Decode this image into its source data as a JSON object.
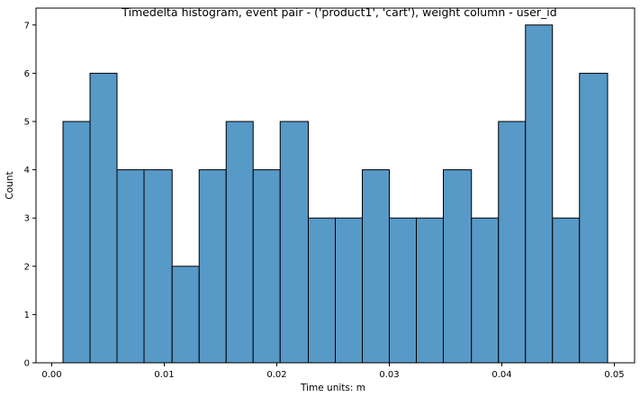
{
  "chart_data": {
    "type": "bar",
    "title": "Timedelta histogram, event pair - ('product1', 'cart'), weight column - user_id",
    "xlabel": "Time units: m",
    "ylabel": "Count",
    "bin_edges": [
      0.001,
      0.0034,
      0.0058,
      0.0082,
      0.0107,
      0.0131,
      0.0155,
      0.0179,
      0.0203,
      0.0228,
      0.0252,
      0.0276,
      0.03,
      0.0324,
      0.0348,
      0.0373,
      0.0397,
      0.0421,
      0.0445,
      0.0469,
      0.0494
    ],
    "values": [
      5,
      6,
      4,
      4,
      2,
      4,
      5,
      4,
      5,
      3,
      3,
      4,
      3,
      3,
      4,
      3,
      5,
      7,
      3,
      6
    ],
    "xlim": [
      -0.0014,
      0.0518
    ],
    "ylim": [
      0,
      7.35
    ],
    "xticks": [
      0.0,
      0.01,
      0.02,
      0.03,
      0.04,
      0.05
    ],
    "xtick_labels": [
      "0.00",
      "0.01",
      "0.02",
      "0.03",
      "0.04",
      "0.05"
    ],
    "yticks": [
      0,
      1,
      2,
      3,
      4,
      5,
      6,
      7
    ],
    "ytick_labels": [
      "0",
      "1",
      "2",
      "3",
      "4",
      "5",
      "6",
      "7"
    ],
    "grid": false,
    "legend": "none",
    "bar_color": "#5799c7",
    "edge_color": "#000000"
  }
}
